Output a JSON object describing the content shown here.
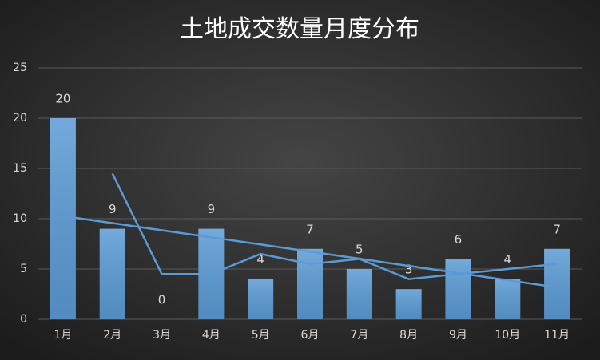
{
  "chart_data": {
    "type": "bar",
    "title": "土地成交数量月度分布",
    "categories": [
      "1月",
      "2月",
      "3月",
      "4月",
      "5月",
      "6月",
      "7月",
      "8月",
      "9月",
      "10月",
      "11月"
    ],
    "values": [
      20,
      9,
      0,
      9,
      4,
      7,
      5,
      3,
      6,
      4,
      7
    ],
    "color": "#5b9bd5",
    "ylim": [
      0,
      25
    ],
    "yticks": [
      0,
      5,
      10,
      15,
      20,
      25
    ],
    "grid": true,
    "lines": [
      {
        "color": "#5b9bd5",
        "values": [
          10.27,
          9.56,
          8.85,
          8.15,
          7.44,
          6.73,
          6.02,
          5.31,
          4.6,
          3.89,
          3.18
        ]
      },
      {
        "color": "#5b9bd5",
        "values": [
          null,
          14.5,
          4.5,
          4.5,
          6.5,
          5.5,
          6,
          4,
          4.5,
          5,
          5.5
        ]
      }
    ]
  }
}
